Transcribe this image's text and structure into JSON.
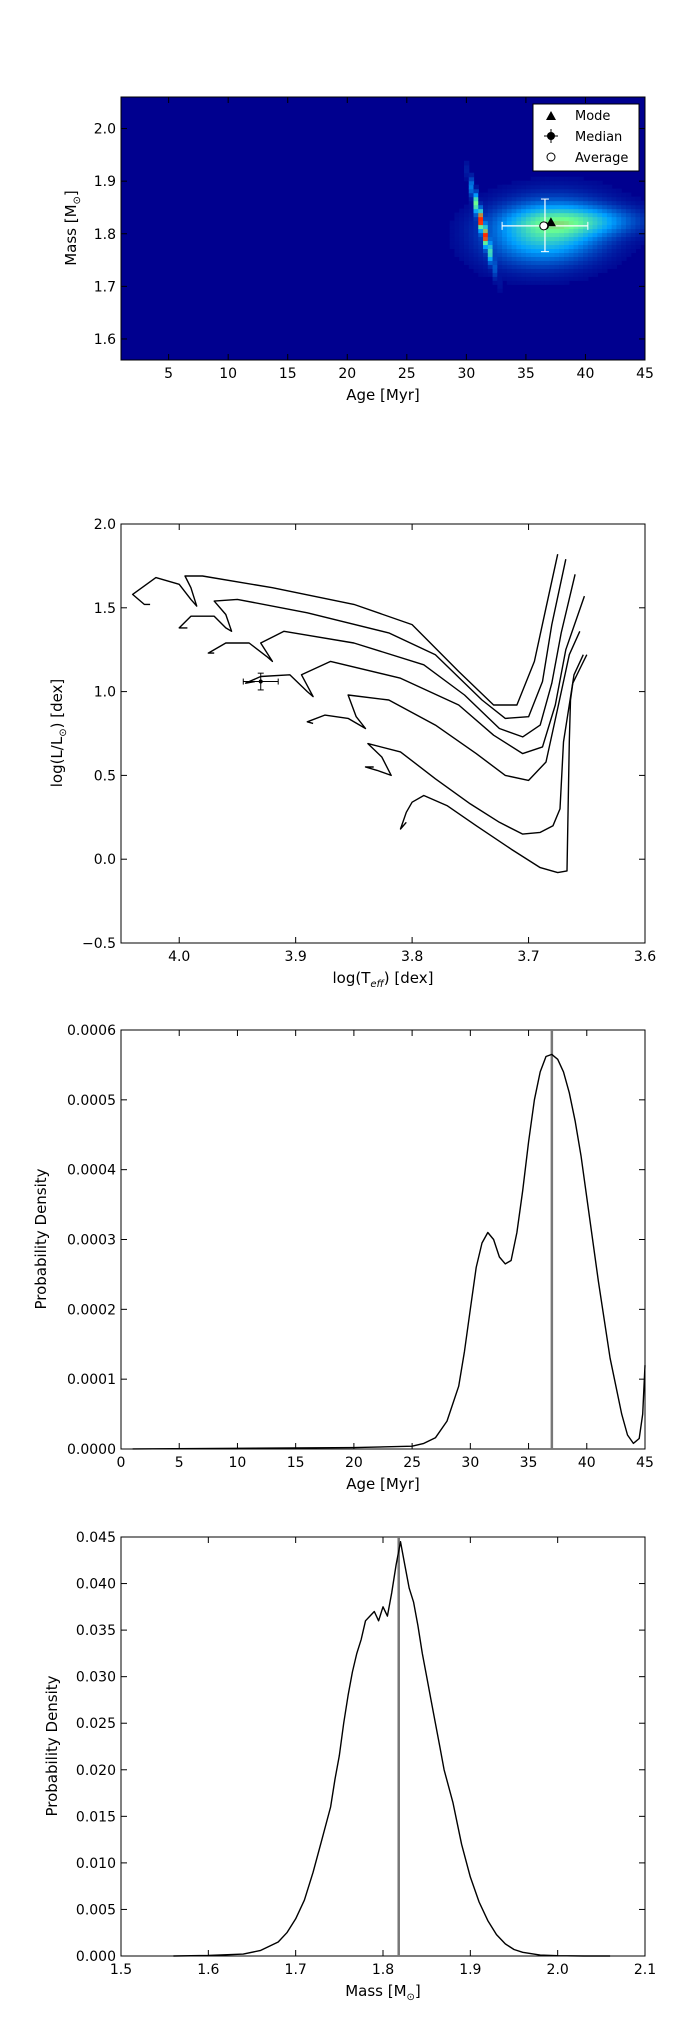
{
  "chart_data": [
    {
      "type": "heatmap",
      "xlabel": "Age [Myr]",
      "ylabel": "Mass [M",
      "ylabel_sub": "⊙",
      "ylabel_close": "]",
      "xlim": [
        1,
        45
      ],
      "ylim": [
        1.56,
        2.06
      ],
      "xticks": [
        5,
        10,
        15,
        20,
        25,
        30,
        35,
        40,
        45
      ],
      "yticks": [
        1.6,
        1.7,
        1.8,
        1.9,
        2.0
      ],
      "xtick_labels": [
        "5",
        "10",
        "15",
        "20",
        "25",
        "30",
        "35",
        "40",
        "45"
      ],
      "ytick_labels": [
        "1.6",
        "1.7",
        "1.8",
        "1.9",
        "2.0"
      ],
      "colors": {
        "background": "#00008f",
        "low": "#00a0ff",
        "mid": "#6cff8f",
        "high": "#ff2a00"
      },
      "density_blobs": [
        {
          "x": 31.3,
          "y": 1.82,
          "sx": 0.55,
          "sy": 0.045,
          "corr": -0.96,
          "peak": 1.0
        },
        {
          "x": 36.8,
          "y": 1.805,
          "sx": 3.2,
          "sy": 0.04,
          "corr": 0.1,
          "peak": 0.55
        },
        {
          "x": 39.5,
          "y": 1.825,
          "sx": 3.5,
          "sy": 0.018,
          "corr": 0.0,
          "peak": 0.3
        }
      ],
      "legend_position": "top-right",
      "legend": [
        "Mode",
        "Median",
        "Average"
      ],
      "points": {
        "mode": {
          "x": 37.1,
          "y": 1.822
        },
        "median": {
          "x": 36.6,
          "y": 1.815,
          "xerr": [
            33.0,
            40.2
          ],
          "yerr": [
            1.766,
            1.866
          ]
        },
        "average": {
          "x": 36.5,
          "y": 1.815
        }
      }
    },
    {
      "type": "line",
      "xlabel": "log(T",
      "xlabel_sub": "eff",
      "xlabel_close": ") [dex]",
      "ylabel": "log(L/L",
      "ylabel_sub": "⊙",
      "ylabel_close": ") [dex]",
      "xlim": [
        4.05,
        3.6
      ],
      "ylim": [
        -0.5,
        2.0
      ],
      "xticks": [
        4.0,
        3.9,
        3.8,
        3.7,
        3.6
      ],
      "yticks": [
        -0.5,
        0.0,
        0.5,
        1.0,
        1.5,
        2.0
      ],
      "xtick_labels": [
        "4.0",
        "3.9",
        "3.8",
        "3.7",
        "3.6"
      ],
      "ytick_labels": [
        "−0.5",
        "0.0",
        "0.5",
        "1.0",
        "1.5",
        "2.0"
      ],
      "series": [
        {
          "x": [
            4.025,
            4.03,
            4.04,
            4.02,
            4.0,
            3.99,
            3.985,
            3.99,
            3.995,
            3.98,
            3.92,
            3.85,
            3.8,
            3.76,
            3.73,
            3.71,
            3.695,
            3.685,
            3.675
          ],
          "y": [
            1.52,
            1.52,
            1.58,
            1.68,
            1.64,
            1.55,
            1.51,
            1.62,
            1.69,
            1.69,
            1.62,
            1.52,
            1.4,
            1.12,
            0.92,
            0.92,
            1.18,
            1.5,
            1.82
          ]
        },
        {
          "x": [
            3.993,
            4.0,
            3.99,
            3.97,
            3.96,
            3.955,
            3.96,
            3.97,
            3.95,
            3.89,
            3.82,
            3.78,
            3.74,
            3.72,
            3.7,
            3.688,
            3.68,
            3.668
          ],
          "y": [
            1.38,
            1.38,
            1.45,
            1.45,
            1.38,
            1.36,
            1.46,
            1.54,
            1.55,
            1.47,
            1.35,
            1.22,
            0.95,
            0.84,
            0.85,
            1.06,
            1.4,
            1.79
          ]
        },
        {
          "x": [
            3.97,
            3.975,
            3.96,
            3.94,
            3.925,
            3.92,
            3.93,
            3.91,
            3.85,
            3.79,
            3.755,
            3.725,
            3.705,
            3.69,
            3.68,
            3.672,
            3.66
          ],
          "y": [
            1.23,
            1.23,
            1.29,
            1.29,
            1.21,
            1.18,
            1.29,
            1.36,
            1.29,
            1.16,
            0.98,
            0.78,
            0.73,
            0.8,
            1.05,
            1.35,
            1.7
          ]
        },
        {
          "x": [
            3.935,
            3.943,
            3.93,
            3.905,
            3.89,
            3.885,
            3.895,
            3.87,
            3.81,
            3.76,
            3.73,
            3.705,
            3.688,
            3.677,
            3.668,
            3.652
          ],
          "y": [
            1.06,
            1.05,
            1.09,
            1.1,
            1.0,
            0.97,
            1.1,
            1.18,
            1.08,
            0.92,
            0.74,
            0.63,
            0.67,
            0.92,
            1.25,
            1.57
          ]
        },
        {
          "x": [
            3.885,
            3.89,
            3.875,
            3.855,
            3.84,
            3.848,
            3.855,
            3.82,
            3.78,
            3.745,
            3.72,
            3.7,
            3.685,
            3.675,
            3.665,
            3.656
          ],
          "y": [
            0.81,
            0.82,
            0.86,
            0.84,
            0.78,
            0.85,
            0.98,
            0.95,
            0.8,
            0.63,
            0.5,
            0.47,
            0.58,
            0.9,
            1.22,
            1.36
          ]
        },
        {
          "x": [
            3.833,
            3.84,
            3.83,
            3.818,
            3.826,
            3.838,
            3.81,
            3.78,
            3.75,
            3.725,
            3.705,
            3.69,
            3.679,
            3.673,
            3.67,
            3.661,
            3.653
          ],
          "y": [
            0.55,
            0.55,
            0.53,
            0.5,
            0.61,
            0.69,
            0.64,
            0.48,
            0.33,
            0.22,
            0.15,
            0.16,
            0.2,
            0.3,
            0.7,
            1.1,
            1.22
          ]
        },
        {
          "x": [
            3.805,
            3.81,
            3.805,
            3.8,
            3.79,
            3.77,
            3.745,
            3.715,
            3.69,
            3.675,
            3.667,
            3.666,
            3.665,
            3.664,
            3.662,
            3.655,
            3.65
          ],
          "y": [
            0.22,
            0.18,
            0.28,
            0.34,
            0.38,
            0.32,
            0.2,
            0.06,
            -0.05,
            -0.08,
            -0.07,
            0.3,
            0.7,
            0.95,
            1.05,
            1.15,
            1.22
          ]
        }
      ],
      "error_point": {
        "x": 3.93,
        "y": 1.06,
        "xerr": 0.015,
        "yerr": 0.05
      }
    },
    {
      "type": "line",
      "xlabel": "Age [Myr]",
      "ylabel": "Probability Density",
      "xlim": [
        0,
        45
      ],
      "ylim": [
        0,
        0.0006
      ],
      "xticks": [
        0,
        5,
        10,
        15,
        20,
        25,
        30,
        35,
        40,
        45
      ],
      "yticks": [
        0,
        0.0001,
        0.0002,
        0.0003,
        0.0004,
        0.0005,
        0.0006
      ],
      "xtick_labels": [
        "0",
        "5",
        "10",
        "15",
        "20",
        "25",
        "30",
        "35",
        "40",
        "45"
      ],
      "ytick_labels": [
        "0.0000",
        "0.0001",
        "0.0002",
        "0.0003",
        "0.0004",
        "0.0005",
        "0.0006"
      ],
      "x": [
        1,
        10,
        20,
        25,
        26,
        27,
        28,
        29,
        29.5,
        30,
        30.5,
        31,
        31.5,
        32,
        32.5,
        33,
        33.5,
        34,
        34.5,
        35,
        35.5,
        36,
        36.5,
        37,
        37.5,
        38,
        38.5,
        39,
        39.5,
        40,
        41,
        42,
        43,
        43.5,
        44,
        44.5,
        44.8,
        45
      ],
      "y": [
        2e-07,
        1e-06,
        2e-06,
        4e-06,
        8e-06,
        1.6e-05,
        4e-05,
        9e-05,
        0.00014,
        0.0002,
        0.00026,
        0.000295,
        0.00031,
        0.0003,
        0.000275,
        0.000265,
        0.00027,
        0.00031,
        0.00037,
        0.00044,
        0.0005,
        0.00054,
        0.000562,
        0.000565,
        0.000558,
        0.00054,
        0.00051,
        0.00047,
        0.00042,
        0.00036,
        0.00024,
        0.00013,
        5e-05,
        2e-05,
        8e-06,
        1.5e-05,
        5e-05,
        0.00012
      ],
      "vline": 37.0
    },
    {
      "type": "line",
      "xlabel": "Mass [M",
      "xlabel_sub": "⊙",
      "xlabel_close": "]",
      "ylabel": "Probability Density",
      "xlim": [
        1.5,
        2.1
      ],
      "ylim": [
        0,
        0.045
      ],
      "xticks": [
        1.5,
        1.6,
        1.7,
        1.8,
        1.9,
        2.0,
        2.1
      ],
      "yticks": [
        0,
        0.005,
        0.01,
        0.015,
        0.02,
        0.025,
        0.03,
        0.035,
        0.04,
        0.045
      ],
      "xtick_labels": [
        "1.5",
        "1.6",
        "1.7",
        "1.8",
        "1.9",
        "2.0",
        "2.1"
      ],
      "ytick_labels": [
        "0.000",
        "0.005",
        "0.010",
        "0.015",
        "0.020",
        "0.025",
        "0.030",
        "0.035",
        "0.040",
        "0.045"
      ],
      "x": [
        1.56,
        1.6,
        1.64,
        1.66,
        1.68,
        1.69,
        1.7,
        1.71,
        1.72,
        1.73,
        1.74,
        1.745,
        1.75,
        1.755,
        1.76,
        1.765,
        1.77,
        1.775,
        1.78,
        1.785,
        1.79,
        1.795,
        1.8,
        1.805,
        1.81,
        1.815,
        1.82,
        1.825,
        1.83,
        1.835,
        1.84,
        1.845,
        1.85,
        1.855,
        1.86,
        1.865,
        1.87,
        1.88,
        1.89,
        1.9,
        1.91,
        1.92,
        1.93,
        1.94,
        1.95,
        1.96,
        1.98,
        2.0,
        2.03,
        2.06
      ],
      "y": [
        0.0,
        5e-05,
        0.0002,
        0.0006,
        0.0015,
        0.0025,
        0.004,
        0.006,
        0.009,
        0.0125,
        0.016,
        0.019,
        0.0215,
        0.025,
        0.028,
        0.0305,
        0.0325,
        0.034,
        0.036,
        0.0365,
        0.037,
        0.036,
        0.0375,
        0.0365,
        0.039,
        0.042,
        0.0445,
        0.042,
        0.0395,
        0.038,
        0.0355,
        0.0325,
        0.03,
        0.0275,
        0.025,
        0.0225,
        0.02,
        0.0165,
        0.012,
        0.0085,
        0.0058,
        0.0038,
        0.0023,
        0.0013,
        0.0007,
        0.0004,
        0.0001,
        3e-05,
        0.0,
        0.0
      ],
      "vline": 1.818
    }
  ]
}
